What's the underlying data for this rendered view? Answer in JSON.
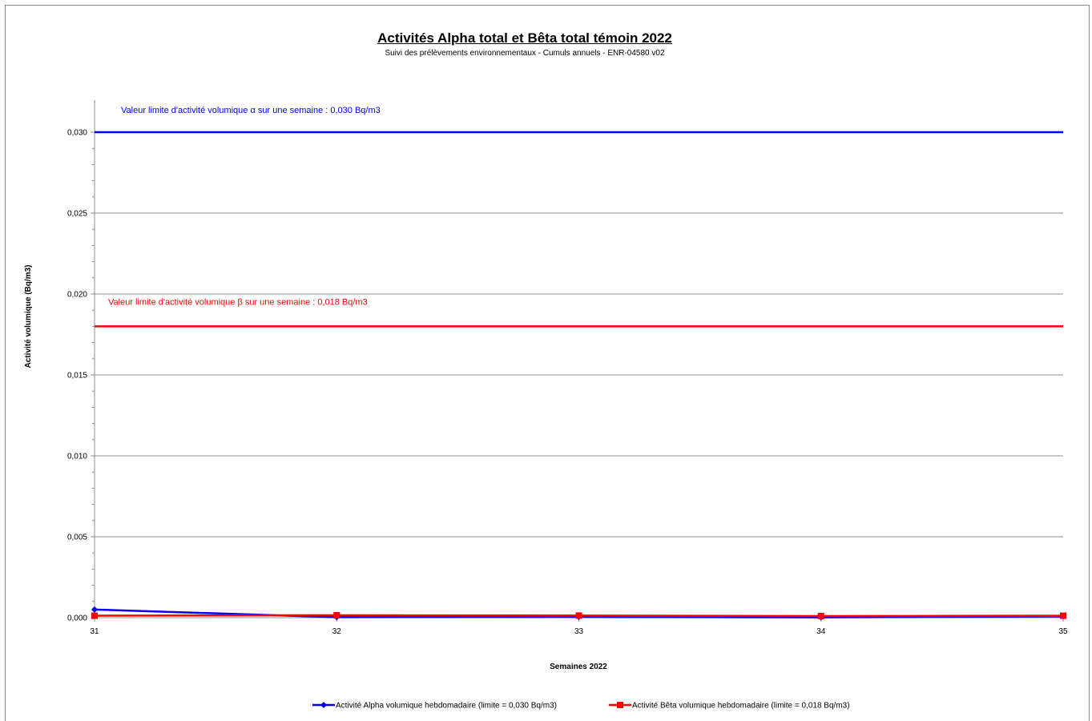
{
  "chart_data": {
    "type": "line",
    "title": "Activités Alpha total et Bêta total témoin 2022",
    "subtitle": "Suivi des prélèvements environnementaux - Cumuls annuels - ENR-04580 v02",
    "xlabel": "Semaines 2022",
    "ylabel": "Activité volumique (Bq/m3)",
    "x": [
      31,
      32,
      33,
      34,
      35
    ],
    "x_tick_labels": [
      "31",
      "32",
      "33",
      "34",
      "35"
    ],
    "ylim": [
      0,
      0.03
    ],
    "y_ticks": [
      0,
      0.005,
      0.01,
      0.015,
      0.02,
      0.025,
      0.03
    ],
    "y_tick_labels": [
      "0,000",
      "0,005",
      "0,010",
      "0,015",
      "0,020",
      "0,025",
      "0,030"
    ],
    "grid": true,
    "legend_position": "bottom",
    "series": [
      {
        "name": "Activité Alpha volumique hebdomadaire (limite = 0,030 Bq/m3)",
        "color": "#0000ff",
        "marker": "diamond",
        "values": [
          0.0005,
          3e-05,
          5e-05,
          2e-05,
          8e-05
        ]
      },
      {
        "name": "Activité Bêta volumique hebdomadaire (limite = 0,018 Bq/m3)",
        "color": "#ff0000",
        "marker": "square",
        "values": [
          0.00012,
          0.00015,
          0.00013,
          0.0001,
          0.00012
        ]
      }
    ],
    "reference_lines": [
      {
        "value": 0.03,
        "color": "#0000ff",
        "label": "Valeur limite d'activité volumique α sur une semaine : 0,030 Bq/m3"
      },
      {
        "value": 0.018,
        "color": "#ff0000",
        "label": "Valeur limite d'activité volumique β sur une semaine : 0,018 Bq/m3"
      }
    ]
  }
}
